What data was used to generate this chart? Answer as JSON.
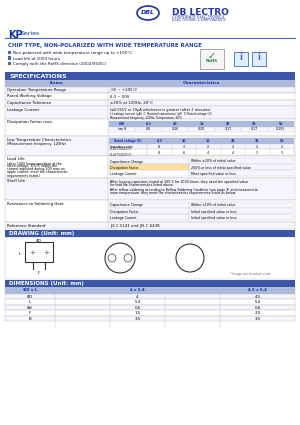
{
  "company": "DB LECTRO",
  "company_sub1": "CORPORATE ELECTRONICS",
  "company_sub2": "ELECTRONIC COMPONENTS",
  "kp_label": "KP",
  "series_label": " Series",
  "chip_type_title": "CHIP TYPE, NON-POLARIZED WITH WIDE TEMPERATURE RANGE",
  "bullets": [
    "Non-polarized with wide temperature range up to +105°C",
    "Load life of 1000 hours",
    "Comply with the RoHS directive (2002/95/EC)"
  ],
  "spec_header": "SPECIFICATIONS",
  "header_color": "#3a55aa",
  "header_text_color": "#ffffff",
  "accent_color": "#4466cc",
  "title_color": "#1133aa",
  "chip_type_color": "#2244aa",
  "bullet_color": "#111133",
  "table_header_bg": "#aabbdd",
  "grid_line_color": "#bbbbbb",
  "logo_color": "#2233aa",
  "background": "#ffffff",
  "drawing_title": "DRAWING (Unit: mm)",
  "dimensions_title": "DIMENSIONS (Unit: mm)",
  "ref_std": "JIS C 5141 and JIS C 6438"
}
